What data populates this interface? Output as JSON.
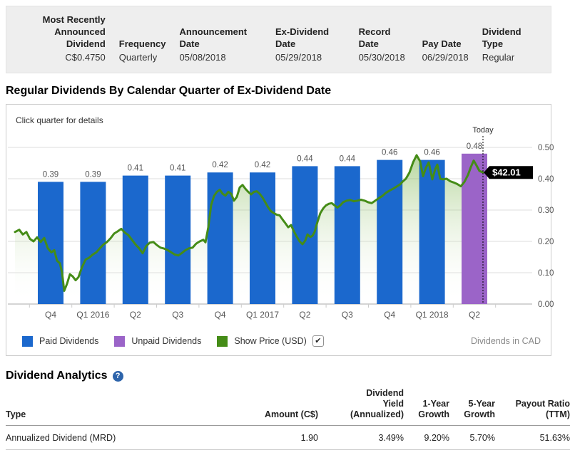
{
  "summary_bar": {
    "columns": [
      {
        "label": "Most Recently\nAnnounced Dividend",
        "value": "C$0.4750",
        "align": "right"
      },
      {
        "label": "Frequency",
        "value": "Quarterly",
        "align": "left"
      },
      {
        "label": "Announcement Date",
        "value": "05/08/2018",
        "align": "left"
      },
      {
        "label": "Ex-Dividend Date",
        "value": "05/29/2018",
        "align": "left"
      },
      {
        "label": "Record Date",
        "value": "05/30/2018",
        "align": "left"
      },
      {
        "label": "Pay Date",
        "value": "06/29/2018",
        "align": "left"
      },
      {
        "label": "Dividend Type",
        "value": "Regular",
        "align": "left"
      }
    ]
  },
  "chart_section": {
    "title": "Regular Dividends By Calendar Quarter of Ex-Dividend Date",
    "note": "Click quarter for details",
    "right_note": "Dividends in CAD",
    "legend": [
      {
        "label": "Paid Dividends",
        "color": "#1b68cd",
        "checkbox": false
      },
      {
        "label": "Unpaid Dividends",
        "color": "#9b64c8",
        "checkbox": false
      },
      {
        "label": "Show Price (USD)",
        "color": "#458c17",
        "checkbox": true,
        "checkbox_glyph": "✔"
      }
    ]
  },
  "colors": {
    "paid_bar": "#1b68cd",
    "unpaid_bar": "#9b64c8",
    "price_line": "#458c17",
    "price_fill_top": "#7ab34b",
    "grid": "#dddddd",
    "axis_line": "#aaaaaa",
    "label_gray": "#555555",
    "tag_bg": "#000000",
    "tag_text": "#ffffff",
    "today_line": "#000000"
  },
  "chart_data": {
    "type": "bar+line",
    "title": "Regular Dividends By Calendar Quarter of Ex-Dividend Date",
    "categories": [
      "Q4",
      "Q1 2016",
      "Q2",
      "Q3",
      "Q4",
      "Q1 2017",
      "Q2",
      "Q3",
      "Q4",
      "Q1 2018",
      "Q2"
    ],
    "bar_values": [
      0.39,
      0.39,
      0.41,
      0.41,
      0.42,
      0.42,
      0.44,
      0.44,
      0.46,
      0.46,
      0.48
    ],
    "bar_labels": [
      "0.39",
      "0.39",
      "0.41",
      "0.41",
      "0.42",
      "0.42",
      "0.44",
      "0.44",
      "0.46",
      "0.46",
      "0.48"
    ],
    "unpaid_index": 10,
    "ylim": [
      0,
      0.5
    ],
    "y_ticks": [
      "0.50",
      "0.40",
      "0.30",
      "0.20",
      "0.10",
      "0.00"
    ],
    "today_label": "Today",
    "today_x": 676,
    "price_tag": "$42.01",
    "series": [
      {
        "name": "Paid Dividends",
        "values": [
          0.39,
          0.39,
          0.41,
          0.41,
          0.42,
          0.42,
          0.44,
          0.44,
          0.46,
          0.46,
          null
        ]
      },
      {
        "name": "Unpaid Dividends",
        "values": [
          null,
          null,
          null,
          null,
          null,
          null,
          null,
          null,
          null,
          null,
          0.48
        ]
      }
    ],
    "price_line": {
      "name": "Show Price (USD)",
      "last_price_label": "$42.01",
      "points": [
        [
          20,
          0.23
        ],
        [
          26,
          0.237
        ],
        [
          31,
          0.222
        ],
        [
          36,
          0.23
        ],
        [
          41,
          0.208
        ],
        [
          46,
          0.2
        ],
        [
          51,
          0.213
        ],
        [
          56,
          0.198
        ],
        [
          61,
          0.211
        ],
        [
          66,
          0.178
        ],
        [
          71,
          0.165
        ],
        [
          75,
          0.172
        ],
        [
          79,
          0.138
        ],
        [
          83,
          0.13
        ],
        [
          86,
          0.1
        ],
        [
          89,
          0.042
        ],
        [
          93,
          0.065
        ],
        [
          97,
          0.095
        ],
        [
          101,
          0.088
        ],
        [
          105,
          0.076
        ],
        [
          109,
          0.086
        ],
        [
          114,
          0.118
        ],
        [
          119,
          0.142
        ],
        [
          124,
          0.148
        ],
        [
          129,
          0.158
        ],
        [
          134,
          0.165
        ],
        [
          139,
          0.178
        ],
        [
          144,
          0.19
        ],
        [
          149,
          0.198
        ],
        [
          154,
          0.21
        ],
        [
          159,
          0.225
        ],
        [
          164,
          0.232
        ],
        [
          169,
          0.24
        ],
        [
          174,
          0.228
        ],
        [
          179,
          0.22
        ],
        [
          184,
          0.205
        ],
        [
          189,
          0.19
        ],
        [
          194,
          0.178
        ],
        [
          199,
          0.162
        ],
        [
          204,
          0.185
        ],
        [
          209,
          0.196
        ],
        [
          214,
          0.198
        ],
        [
          219,
          0.188
        ],
        [
          224,
          0.18
        ],
        [
          229,
          0.177
        ],
        [
          234,
          0.172
        ],
        [
          239,
          0.165
        ],
        [
          244,
          0.158
        ],
        [
          249,
          0.155
        ],
        [
          254,
          0.163
        ],
        [
          259,
          0.172
        ],
        [
          264,
          0.178
        ],
        [
          269,
          0.18
        ],
        [
          274,
          0.193
        ],
        [
          279,
          0.2
        ],
        [
          284,
          0.205
        ],
        [
          287,
          0.197
        ],
        [
          291,
          0.245
        ],
        [
          295,
          0.316
        ],
        [
          299,
          0.345
        ],
        [
          303,
          0.358
        ],
        [
          307,
          0.365
        ],
        [
          311,
          0.352
        ],
        [
          315,
          0.346
        ],
        [
          319,
          0.358
        ],
        [
          323,
          0.352
        ],
        [
          327,
          0.33
        ],
        [
          331,
          0.342
        ],
        [
          335,
          0.372
        ],
        [
          339,
          0.38
        ],
        [
          343,
          0.368
        ],
        [
          347,
          0.358
        ],
        [
          351,
          0.35
        ],
        [
          355,
          0.358
        ],
        [
          359,
          0.36
        ],
        [
          363,
          0.352
        ],
        [
          367,
          0.34
        ],
        [
          371,
          0.324
        ],
        [
          375,
          0.308
        ],
        [
          379,
          0.296
        ],
        [
          383,
          0.29
        ],
        [
          387,
          0.285
        ],
        [
          391,
          0.283
        ],
        [
          395,
          0.27
        ],
        [
          399,
          0.258
        ],
        [
          403,
          0.245
        ],
        [
          407,
          0.252
        ],
        [
          411,
          0.232
        ],
        [
          415,
          0.215
        ],
        [
          419,
          0.2
        ],
        [
          423,
          0.191
        ],
        [
          427,
          0.203
        ],
        [
          430,
          0.222
        ],
        [
          434,
          0.214
        ],
        [
          437,
          0.218
        ],
        [
          440,
          0.23
        ],
        [
          444,
          0.262
        ],
        [
          448,
          0.29
        ],
        [
          452,
          0.305
        ],
        [
          456,
          0.315
        ],
        [
          460,
          0.32
        ],
        [
          464,
          0.322
        ],
        [
          468,
          0.315
        ],
        [
          472,
          0.308
        ],
        [
          476,
          0.315
        ],
        [
          480,
          0.325
        ],
        [
          485,
          0.33
        ],
        [
          490,
          0.332
        ],
        [
          495,
          0.328
        ],
        [
          500,
          0.33
        ],
        [
          505,
          0.333
        ],
        [
          510,
          0.33
        ],
        [
          515,
          0.325
        ],
        [
          520,
          0.322
        ],
        [
          525,
          0.33
        ],
        [
          530,
          0.338
        ],
        [
          535,
          0.345
        ],
        [
          540,
          0.355
        ],
        [
          545,
          0.362
        ],
        [
          550,
          0.368
        ],
        [
          555,
          0.375
        ],
        [
          560,
          0.382
        ],
        [
          563,
          0.39
        ],
        [
          568,
          0.4
        ],
        [
          573,
          0.42
        ],
        [
          578,
          0.452
        ],
        [
          583,
          0.475
        ],
        [
          588,
          0.455
        ],
        [
          592,
          0.408
        ],
        [
          596,
          0.435
        ],
        [
          600,
          0.452
        ],
        [
          605,
          0.398
        ],
        [
          609,
          0.43
        ],
        [
          612,
          0.445
        ],
        [
          616,
          0.4
        ],
        [
          620,
          0.398
        ],
        [
          625,
          0.4
        ],
        [
          630,
          0.392
        ],
        [
          635,
          0.388
        ],
        [
          640,
          0.383
        ],
        [
          645,
          0.376
        ],
        [
          650,
          0.39
        ],
        [
          655,
          0.412
        ],
        [
          659,
          0.437
        ],
        [
          663,
          0.458
        ],
        [
          667,
          0.442
        ],
        [
          671,
          0.425
        ],
        [
          676,
          0.42
        ]
      ]
    }
  },
  "analytics": {
    "title": "Dividend Analytics",
    "help_glyph": "?",
    "headers": [
      "Type",
      "Amount (C$)",
      "Dividend\nYield\n(Annualized)",
      "1-Year\nGrowth",
      "5-Year\nGrowth",
      "Payout Ratio\n(TTM)"
    ],
    "rows": [
      [
        "Annualized Dividend (MRD)",
        "1.90",
        "3.49%",
        "9.20%",
        "5.70%",
        "51.63%"
      ]
    ]
  }
}
